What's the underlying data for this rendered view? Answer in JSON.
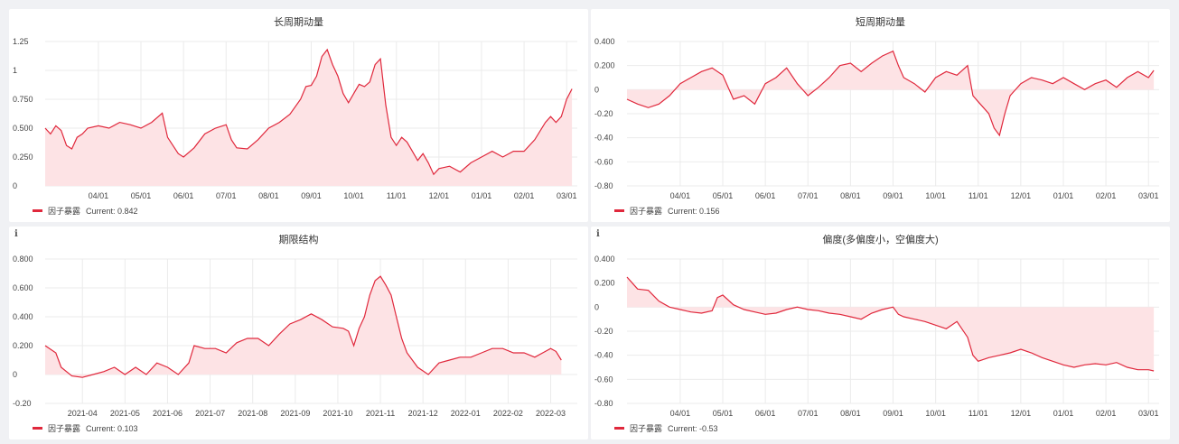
{
  "chart_data": [
    {
      "type": "area",
      "title": "长周期动量",
      "series_name": "因子暴露",
      "current_label": "Current: 0.842",
      "color": "#e0283c",
      "fill": "#fde3e5",
      "ylim": [
        0,
        1.25
      ],
      "yticks": [
        0,
        0.25,
        0.5,
        0.75,
        1,
        1.25
      ],
      "ytick_labels": [
        "0",
        "0.250",
        "0.500",
        "0.750",
        "1",
        "1.25"
      ],
      "xticks": [
        {
          "pos": 0.1,
          "label": "04/01"
        },
        {
          "pos": 0.18,
          "label": "05/01"
        },
        {
          "pos": 0.26,
          "label": "06/01"
        },
        {
          "pos": 0.34,
          "label": "07/01"
        },
        {
          "pos": 0.42,
          "label": "08/01"
        },
        {
          "pos": 0.5,
          "label": "09/01"
        },
        {
          "pos": 0.58,
          "label": "10/01"
        },
        {
          "pos": 0.66,
          "label": "11/01"
        },
        {
          "pos": 0.74,
          "label": "12/01"
        },
        {
          "pos": 0.82,
          "label": "01/01"
        },
        {
          "pos": 0.9,
          "label": "02/01"
        },
        {
          "pos": 0.98,
          "label": "03/01"
        }
      ],
      "points": [
        [
          0.0,
          0.5
        ],
        [
          0.01,
          0.45
        ],
        [
          0.02,
          0.52
        ],
        [
          0.03,
          0.48
        ],
        [
          0.04,
          0.35
        ],
        [
          0.05,
          0.32
        ],
        [
          0.06,
          0.42
        ],
        [
          0.07,
          0.45
        ],
        [
          0.08,
          0.5
        ],
        [
          0.1,
          0.52
        ],
        [
          0.12,
          0.5
        ],
        [
          0.14,
          0.55
        ],
        [
          0.16,
          0.53
        ],
        [
          0.18,
          0.5
        ],
        [
          0.2,
          0.55
        ],
        [
          0.22,
          0.63
        ],
        [
          0.23,
          0.42
        ],
        [
          0.24,
          0.35
        ],
        [
          0.25,
          0.28
        ],
        [
          0.26,
          0.25
        ],
        [
          0.28,
          0.33
        ],
        [
          0.3,
          0.45
        ],
        [
          0.32,
          0.5
        ],
        [
          0.34,
          0.53
        ],
        [
          0.35,
          0.4
        ],
        [
          0.36,
          0.33
        ],
        [
          0.38,
          0.32
        ],
        [
          0.4,
          0.4
        ],
        [
          0.42,
          0.5
        ],
        [
          0.44,
          0.55
        ],
        [
          0.46,
          0.62
        ],
        [
          0.48,
          0.75
        ],
        [
          0.49,
          0.86
        ],
        [
          0.5,
          0.87
        ],
        [
          0.51,
          0.95
        ],
        [
          0.52,
          1.12
        ],
        [
          0.53,
          1.18
        ],
        [
          0.54,
          1.05
        ],
        [
          0.55,
          0.95
        ],
        [
          0.56,
          0.8
        ],
        [
          0.57,
          0.72
        ],
        [
          0.58,
          0.8
        ],
        [
          0.59,
          0.88
        ],
        [
          0.6,
          0.86
        ],
        [
          0.61,
          0.9
        ],
        [
          0.62,
          1.05
        ],
        [
          0.63,
          1.1
        ],
        [
          0.64,
          0.7
        ],
        [
          0.65,
          0.42
        ],
        [
          0.66,
          0.35
        ],
        [
          0.67,
          0.42
        ],
        [
          0.68,
          0.38
        ],
        [
          0.69,
          0.3
        ],
        [
          0.7,
          0.22
        ],
        [
          0.71,
          0.28
        ],
        [
          0.72,
          0.2
        ],
        [
          0.73,
          0.1
        ],
        [
          0.74,
          0.15
        ],
        [
          0.76,
          0.17
        ],
        [
          0.78,
          0.12
        ],
        [
          0.8,
          0.2
        ],
        [
          0.82,
          0.25
        ],
        [
          0.84,
          0.3
        ],
        [
          0.86,
          0.25
        ],
        [
          0.88,
          0.3
        ],
        [
          0.9,
          0.3
        ],
        [
          0.92,
          0.4
        ],
        [
          0.94,
          0.55
        ],
        [
          0.95,
          0.6
        ],
        [
          0.96,
          0.55
        ],
        [
          0.97,
          0.6
        ],
        [
          0.98,
          0.75
        ],
        [
          0.99,
          0.84
        ]
      ]
    },
    {
      "type": "area",
      "title": "短周期动量",
      "series_name": "因子暴露",
      "current_label": "Current: 0.156",
      "color": "#e0283c",
      "fill": "#fde3e5",
      "ylim": [
        -0.8,
        0.4
      ],
      "yticks": [
        -0.8,
        -0.6,
        -0.4,
        -0.2,
        0,
        0.2,
        0.4
      ],
      "ytick_labels": [
        "-0.80",
        "-0.60",
        "-0.40",
        "-0.20",
        "0",
        "0.200",
        "0.400"
      ],
      "xticks": [
        {
          "pos": 0.1,
          "label": "04/01"
        },
        {
          "pos": 0.18,
          "label": "05/01"
        },
        {
          "pos": 0.26,
          "label": "06/01"
        },
        {
          "pos": 0.34,
          "label": "07/01"
        },
        {
          "pos": 0.42,
          "label": "08/01"
        },
        {
          "pos": 0.5,
          "label": "09/01"
        },
        {
          "pos": 0.58,
          "label": "10/01"
        },
        {
          "pos": 0.66,
          "label": "11/01"
        },
        {
          "pos": 0.74,
          "label": "12/01"
        },
        {
          "pos": 0.82,
          "label": "01/01"
        },
        {
          "pos": 0.9,
          "label": "02/01"
        },
        {
          "pos": 0.98,
          "label": "03/01"
        }
      ],
      "points": [
        [
          0.0,
          -0.08
        ],
        [
          0.02,
          -0.12
        ],
        [
          0.04,
          -0.15
        ],
        [
          0.06,
          -0.12
        ],
        [
          0.08,
          -0.05
        ],
        [
          0.1,
          0.05
        ],
        [
          0.12,
          0.1
        ],
        [
          0.14,
          0.15
        ],
        [
          0.16,
          0.18
        ],
        [
          0.18,
          0.12
        ],
        [
          0.2,
          -0.08
        ],
        [
          0.22,
          -0.05
        ],
        [
          0.24,
          -0.12
        ],
        [
          0.26,
          0.05
        ],
        [
          0.28,
          0.1
        ],
        [
          0.3,
          0.18
        ],
        [
          0.32,
          0.05
        ],
        [
          0.34,
          -0.05
        ],
        [
          0.36,
          0.02
        ],
        [
          0.38,
          0.1
        ],
        [
          0.4,
          0.2
        ],
        [
          0.42,
          0.22
        ],
        [
          0.44,
          0.15
        ],
        [
          0.46,
          0.22
        ],
        [
          0.48,
          0.28
        ],
        [
          0.5,
          0.32
        ],
        [
          0.51,
          0.2
        ],
        [
          0.52,
          0.1
        ],
        [
          0.54,
          0.05
        ],
        [
          0.56,
          -0.02
        ],
        [
          0.58,
          0.1
        ],
        [
          0.6,
          0.15
        ],
        [
          0.62,
          0.12
        ],
        [
          0.64,
          0.2
        ],
        [
          0.65,
          -0.05
        ],
        [
          0.66,
          -0.1
        ],
        [
          0.68,
          -0.2
        ],
        [
          0.69,
          -0.32
        ],
        [
          0.7,
          -0.38
        ],
        [
          0.71,
          -0.2
        ],
        [
          0.72,
          -0.05
        ],
        [
          0.74,
          0.05
        ],
        [
          0.76,
          0.1
        ],
        [
          0.78,
          0.08
        ],
        [
          0.8,
          0.05
        ],
        [
          0.82,
          0.1
        ],
        [
          0.84,
          0.05
        ],
        [
          0.86,
          0.0
        ],
        [
          0.88,
          0.05
        ],
        [
          0.9,
          0.08
        ],
        [
          0.92,
          0.02
        ],
        [
          0.94,
          0.1
        ],
        [
          0.96,
          0.15
        ],
        [
          0.98,
          0.1
        ],
        [
          0.99,
          0.16
        ]
      ]
    },
    {
      "type": "area",
      "title": "期限结构",
      "series_name": "因子暴露",
      "current_label": "Current: 0.103",
      "color": "#e0283c",
      "fill": "#fde3e5",
      "ylim": [
        -0.2,
        0.8
      ],
      "yticks": [
        -0.2,
        0,
        0.2,
        0.4,
        0.6,
        0.8
      ],
      "ytick_labels": [
        "-0.20",
        "0",
        "0.200",
        "0.400",
        "0.600",
        "0.800"
      ],
      "xticks": [
        {
          "pos": 0.07,
          "label": "2021-04"
        },
        {
          "pos": 0.15,
          "label": "2021-05"
        },
        {
          "pos": 0.23,
          "label": "2021-06"
        },
        {
          "pos": 0.31,
          "label": "2021-07"
        },
        {
          "pos": 0.39,
          "label": "2021-08"
        },
        {
          "pos": 0.47,
          "label": "2021-09"
        },
        {
          "pos": 0.55,
          "label": "2021-10"
        },
        {
          "pos": 0.63,
          "label": "2021-11"
        },
        {
          "pos": 0.71,
          "label": "2021-12"
        },
        {
          "pos": 0.79,
          "label": "2022-01"
        },
        {
          "pos": 0.87,
          "label": "2022-02"
        },
        {
          "pos": 0.95,
          "label": "2022-03"
        }
      ],
      "points": [
        [
          0.0,
          0.2
        ],
        [
          0.02,
          0.15
        ],
        [
          0.03,
          0.05
        ],
        [
          0.05,
          -0.01
        ],
        [
          0.07,
          -0.02
        ],
        [
          0.09,
          0.0
        ],
        [
          0.11,
          0.02
        ],
        [
          0.13,
          0.05
        ],
        [
          0.15,
          0.0
        ],
        [
          0.17,
          0.05
        ],
        [
          0.19,
          0.0
        ],
        [
          0.21,
          0.08
        ],
        [
          0.23,
          0.05
        ],
        [
          0.25,
          0.0
        ],
        [
          0.27,
          0.08
        ],
        [
          0.28,
          0.2
        ],
        [
          0.3,
          0.18
        ],
        [
          0.32,
          0.18
        ],
        [
          0.34,
          0.15
        ],
        [
          0.36,
          0.22
        ],
        [
          0.38,
          0.25
        ],
        [
          0.4,
          0.25
        ],
        [
          0.42,
          0.2
        ],
        [
          0.44,
          0.28
        ],
        [
          0.46,
          0.35
        ],
        [
          0.48,
          0.38
        ],
        [
          0.5,
          0.42
        ],
        [
          0.52,
          0.38
        ],
        [
          0.54,
          0.33
        ],
        [
          0.56,
          0.32
        ],
        [
          0.57,
          0.3
        ],
        [
          0.58,
          0.2
        ],
        [
          0.59,
          0.32
        ],
        [
          0.6,
          0.4
        ],
        [
          0.61,
          0.55
        ],
        [
          0.62,
          0.65
        ],
        [
          0.63,
          0.68
        ],
        [
          0.64,
          0.62
        ],
        [
          0.65,
          0.55
        ],
        [
          0.66,
          0.4
        ],
        [
          0.67,
          0.25
        ],
        [
          0.68,
          0.15
        ],
        [
          0.7,
          0.05
        ],
        [
          0.72,
          0.0
        ],
        [
          0.74,
          0.08
        ],
        [
          0.76,
          0.1
        ],
        [
          0.78,
          0.12
        ],
        [
          0.8,
          0.12
        ],
        [
          0.82,
          0.15
        ],
        [
          0.84,
          0.18
        ],
        [
          0.86,
          0.18
        ],
        [
          0.88,
          0.15
        ],
        [
          0.9,
          0.15
        ],
        [
          0.92,
          0.12
        ],
        [
          0.94,
          0.16
        ],
        [
          0.95,
          0.18
        ],
        [
          0.96,
          0.16
        ],
        [
          0.97,
          0.1
        ]
      ]
    },
    {
      "type": "area",
      "title": "偏度(多偏度小，空偏度大)",
      "series_name": "因子暴露",
      "current_label": "Current: -0.53",
      "color": "#e0283c",
      "fill": "#fde3e5",
      "ylim": [
        -0.8,
        0.4
      ],
      "yticks": [
        -0.8,
        -0.6,
        -0.4,
        -0.2,
        0,
        0.2,
        0.4
      ],
      "ytick_labels": [
        "-0.80",
        "-0.60",
        "-0.40",
        "-0.20",
        "0",
        "0.200",
        "0.400"
      ],
      "xticks": [
        {
          "pos": 0.1,
          "label": "04/01"
        },
        {
          "pos": 0.18,
          "label": "05/01"
        },
        {
          "pos": 0.26,
          "label": "06/01"
        },
        {
          "pos": 0.34,
          "label": "07/01"
        },
        {
          "pos": 0.42,
          "label": "08/01"
        },
        {
          "pos": 0.5,
          "label": "09/01"
        },
        {
          "pos": 0.58,
          "label": "10/01"
        },
        {
          "pos": 0.66,
          "label": "11/01"
        },
        {
          "pos": 0.74,
          "label": "12/01"
        },
        {
          "pos": 0.82,
          "label": "01/01"
        },
        {
          "pos": 0.9,
          "label": "02/01"
        },
        {
          "pos": 0.98,
          "label": "03/01"
        }
      ],
      "points": [
        [
          0.0,
          0.25
        ],
        [
          0.01,
          0.2
        ],
        [
          0.02,
          0.15
        ],
        [
          0.04,
          0.14
        ],
        [
          0.06,
          0.05
        ],
        [
          0.08,
          0.0
        ],
        [
          0.1,
          -0.02
        ],
        [
          0.12,
          -0.04
        ],
        [
          0.14,
          -0.05
        ],
        [
          0.16,
          -0.03
        ],
        [
          0.17,
          0.08
        ],
        [
          0.18,
          0.1
        ],
        [
          0.2,
          0.02
        ],
        [
          0.22,
          -0.02
        ],
        [
          0.24,
          -0.04
        ],
        [
          0.26,
          -0.06
        ],
        [
          0.28,
          -0.05
        ],
        [
          0.3,
          -0.02
        ],
        [
          0.32,
          0.0
        ],
        [
          0.34,
          -0.02
        ],
        [
          0.36,
          -0.03
        ],
        [
          0.38,
          -0.05
        ],
        [
          0.4,
          -0.06
        ],
        [
          0.42,
          -0.08
        ],
        [
          0.44,
          -0.1
        ],
        [
          0.46,
          -0.05
        ],
        [
          0.48,
          -0.02
        ],
        [
          0.5,
          0.0
        ],
        [
          0.51,
          -0.06
        ],
        [
          0.52,
          -0.08
        ],
        [
          0.54,
          -0.1
        ],
        [
          0.56,
          -0.12
        ],
        [
          0.58,
          -0.15
        ],
        [
          0.6,
          -0.18
        ],
        [
          0.62,
          -0.12
        ],
        [
          0.64,
          -0.25
        ],
        [
          0.65,
          -0.4
        ],
        [
          0.66,
          -0.45
        ],
        [
          0.68,
          -0.42
        ],
        [
          0.7,
          -0.4
        ],
        [
          0.72,
          -0.38
        ],
        [
          0.74,
          -0.35
        ],
        [
          0.76,
          -0.38
        ],
        [
          0.78,
          -0.42
        ],
        [
          0.8,
          -0.45
        ],
        [
          0.82,
          -0.48
        ],
        [
          0.84,
          -0.5
        ],
        [
          0.86,
          -0.48
        ],
        [
          0.88,
          -0.47
        ],
        [
          0.9,
          -0.48
        ],
        [
          0.92,
          -0.46
        ],
        [
          0.94,
          -0.5
        ],
        [
          0.96,
          -0.52
        ],
        [
          0.98,
          -0.52
        ],
        [
          0.99,
          -0.53
        ]
      ]
    }
  ]
}
